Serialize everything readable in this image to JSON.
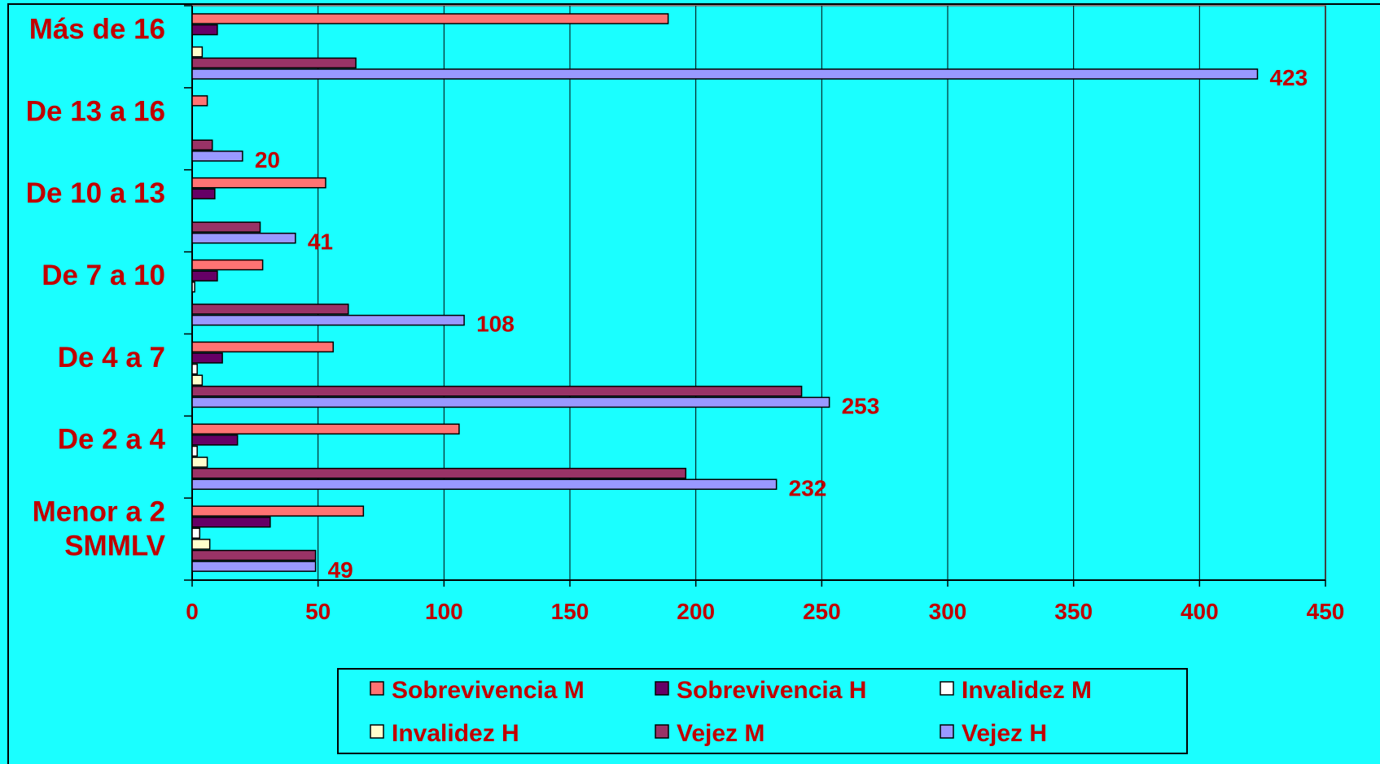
{
  "chart_data": {
    "type": "bar",
    "orientation": "horizontal",
    "categories": [
      "Menor a 2 SMMLV",
      "De 2 a 4",
      "De 4 a 7",
      "De 7 a 10",
      "De 10 a 13",
      "De 13 a 16",
      "Más de 16"
    ],
    "category_lines": [
      [
        "Menor a 2",
        "SMMLV"
      ],
      [
        "De 2 a 4"
      ],
      [
        "De 4 a 7"
      ],
      [
        "De 7 a 10"
      ],
      [
        "De 10 a 13"
      ],
      [
        "De 13 a 16"
      ],
      [
        "Más de 16"
      ]
    ],
    "series": [
      {
        "name": "Sobrevivencia M",
        "color": "#ff7373",
        "values": [
          68,
          106,
          56,
          28,
          53,
          6,
          189
        ]
      },
      {
        "name": "Sobrevivencia H",
        "color": "#660066",
        "values": [
          31,
          18,
          12,
          10,
          9,
          0,
          10
        ]
      },
      {
        "name": "Invalidez M",
        "color": "#ffffff",
        "values": [
          3,
          2,
          2,
          1,
          0,
          0,
          0
        ]
      },
      {
        "name": "Invalidez H",
        "color": "#ffffcc",
        "values": [
          7,
          6,
          4,
          0,
          0,
          0,
          4
        ]
      },
      {
        "name": "Vejez M",
        "color": "#993366",
        "values": [
          49,
          196,
          242,
          62,
          27,
          8,
          65
        ]
      },
      {
        "name": "Vejez H",
        "color": "#9999ff",
        "values": [
          49,
          232,
          253,
          108,
          41,
          20,
          423
        ]
      }
    ],
    "data_labels": {
      "series": "Vejez H",
      "values": [
        "49",
        "232",
        "253",
        "108",
        "41",
        "20",
        "423"
      ]
    },
    "xlim": [
      0,
      450
    ],
    "x_ticks": [
      "0",
      "50",
      "100",
      "150",
      "200",
      "250",
      "300",
      "350",
      "400",
      "450"
    ],
    "x_tick_values": [
      0,
      50,
      100,
      150,
      200,
      250,
      300,
      350,
      400,
      450
    ],
    "grid": "vertical",
    "legend": {
      "position": "bottom",
      "columns": 3
    },
    "colors": {
      "background": "#1affff",
      "text": "#c00000",
      "grid": "#000000"
    }
  }
}
